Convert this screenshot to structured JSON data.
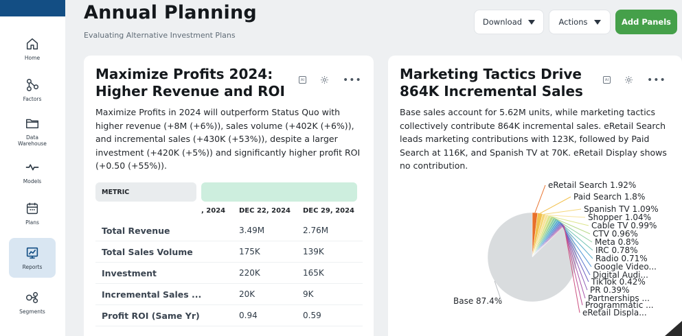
{
  "header": {
    "title": "Annual Planning",
    "subtitle": "Evaluating Alternative Investment Plans",
    "download_label": "Download",
    "actions_label": "Actions",
    "add_panels_label": "Add Panels"
  },
  "sidebar": {
    "items": [
      {
        "label": "Home",
        "icon": "home-icon"
      },
      {
        "label": "Factors",
        "icon": "factors-icon"
      },
      {
        "label": "Data\nWarehouse",
        "icon": "folder-icon"
      },
      {
        "label": "Models",
        "icon": "pulse-icon"
      },
      {
        "label": "Plans",
        "icon": "calendar-icon"
      },
      {
        "label": "Reports",
        "icon": "report-icon"
      },
      {
        "label": "Segments",
        "icon": "segments-icon"
      }
    ],
    "active": "Reports",
    "accent_color": "#134e84",
    "active_bg": "#d9e6f2"
  },
  "card1": {
    "title": "Maximize Profits 2024: Higher Revenue and ROI",
    "ai_label": "AI",
    "text": "Maximize Profits in 2024 will outperform Status Quo with higher revenue (+8M (+6%)), sales volume (+402K (+6%)), and incremental sales (+430K (+53%)), despite a larger investment (+420K (+5%)) and significantly higher profit ROI (+0.50 (+55%)).",
    "table": {
      "metric_header": "METRIC",
      "columns": [
        ", 2024",
        "DEC 22, 2024",
        "DEC 29, 2024"
      ],
      "rows": [
        {
          "metric": "Total Revenue",
          "v1": "3.49M",
          "v2": "2.76M"
        },
        {
          "metric": "Total Sales Volume",
          "v1": "175K",
          "v2": "139K"
        },
        {
          "metric": "Investment",
          "v1": "220K",
          "v2": "165K"
        },
        {
          "metric": "Incremental Sales ...",
          "v1": "20K",
          "v2": "9K"
        },
        {
          "metric": "Profit ROI (Same Yr)",
          "v1": "0.94",
          "v2": "0.59"
        }
      ]
    }
  },
  "card2": {
    "title": "Marketing Tactics Drive 864K Incremental Sales",
    "ai_label": "AI",
    "text": "Base sales account for 5.62M units, while marketing tactics collectively contribute 864K incremental sales. eRetail Search leads marketing contributions with 123K, followed by Paid Search at 116K, and Spanish TV at 70K. eRetail Display shows no contribution."
  },
  "chart_data": {
    "type": "pie",
    "title": "",
    "slices": [
      {
        "label": "Base",
        "value": 87.4,
        "display": "Base 87.4%",
        "color": "#d9dcde"
      },
      {
        "label": "eRetail Search",
        "value": 1.92,
        "display": "eRetail Search 1.92%",
        "color": "#e8702a"
      },
      {
        "label": "Paid Search",
        "value": 1.8,
        "display": "Paid Search 1.8%",
        "color": "#f2c14e"
      },
      {
        "label": "Spanish TV",
        "value": 1.09,
        "display": "Spanish TV 1.09%",
        "color": "#f5d77a"
      },
      {
        "label": "Shopper",
        "value": 1.04,
        "display": "Shopper 1.04%",
        "color": "#f7e39c"
      },
      {
        "label": "Cable TV",
        "value": 0.99,
        "display": "Cable TV 0.99%",
        "color": "#dde58c"
      },
      {
        "label": "CTV",
        "value": 0.96,
        "display": "CTV 0.96%",
        "color": "#b9d98a"
      },
      {
        "label": "Meta",
        "value": 0.8,
        "display": "Meta 0.8%",
        "color": "#8fcfa0"
      },
      {
        "label": "IRC",
        "value": 0.78,
        "display": "IRC 0.78%",
        "color": "#6fc2b4"
      },
      {
        "label": "Radio",
        "value": 0.71,
        "display": "Radio 0.71%",
        "color": "#5aaecb"
      },
      {
        "label": "Google Video",
        "value": 0.6,
        "display": "Google Video...",
        "color": "#4c94d4"
      },
      {
        "label": "Digital Audio",
        "value": 0.5,
        "display": "Digital Audi...",
        "color": "#5a78cc"
      },
      {
        "label": "TikTok",
        "value": 0.42,
        "display": "TikTok 0.42%",
        "color": "#6e62c0"
      },
      {
        "label": "PR",
        "value": 0.39,
        "display": "PR 0.39%",
        "color": "#8a58b6"
      },
      {
        "label": "Partnerships",
        "value": 0.3,
        "display": "Partnerships ...",
        "color": "#a653a8"
      },
      {
        "label": "Programmatic",
        "value": 0.25,
        "display": "Programmatic ...",
        "color": "#bd5096"
      },
      {
        "label": "eRetail Display",
        "value": 0.0,
        "display": "eRetail Displa...",
        "color": "#cc5080"
      }
    ]
  }
}
